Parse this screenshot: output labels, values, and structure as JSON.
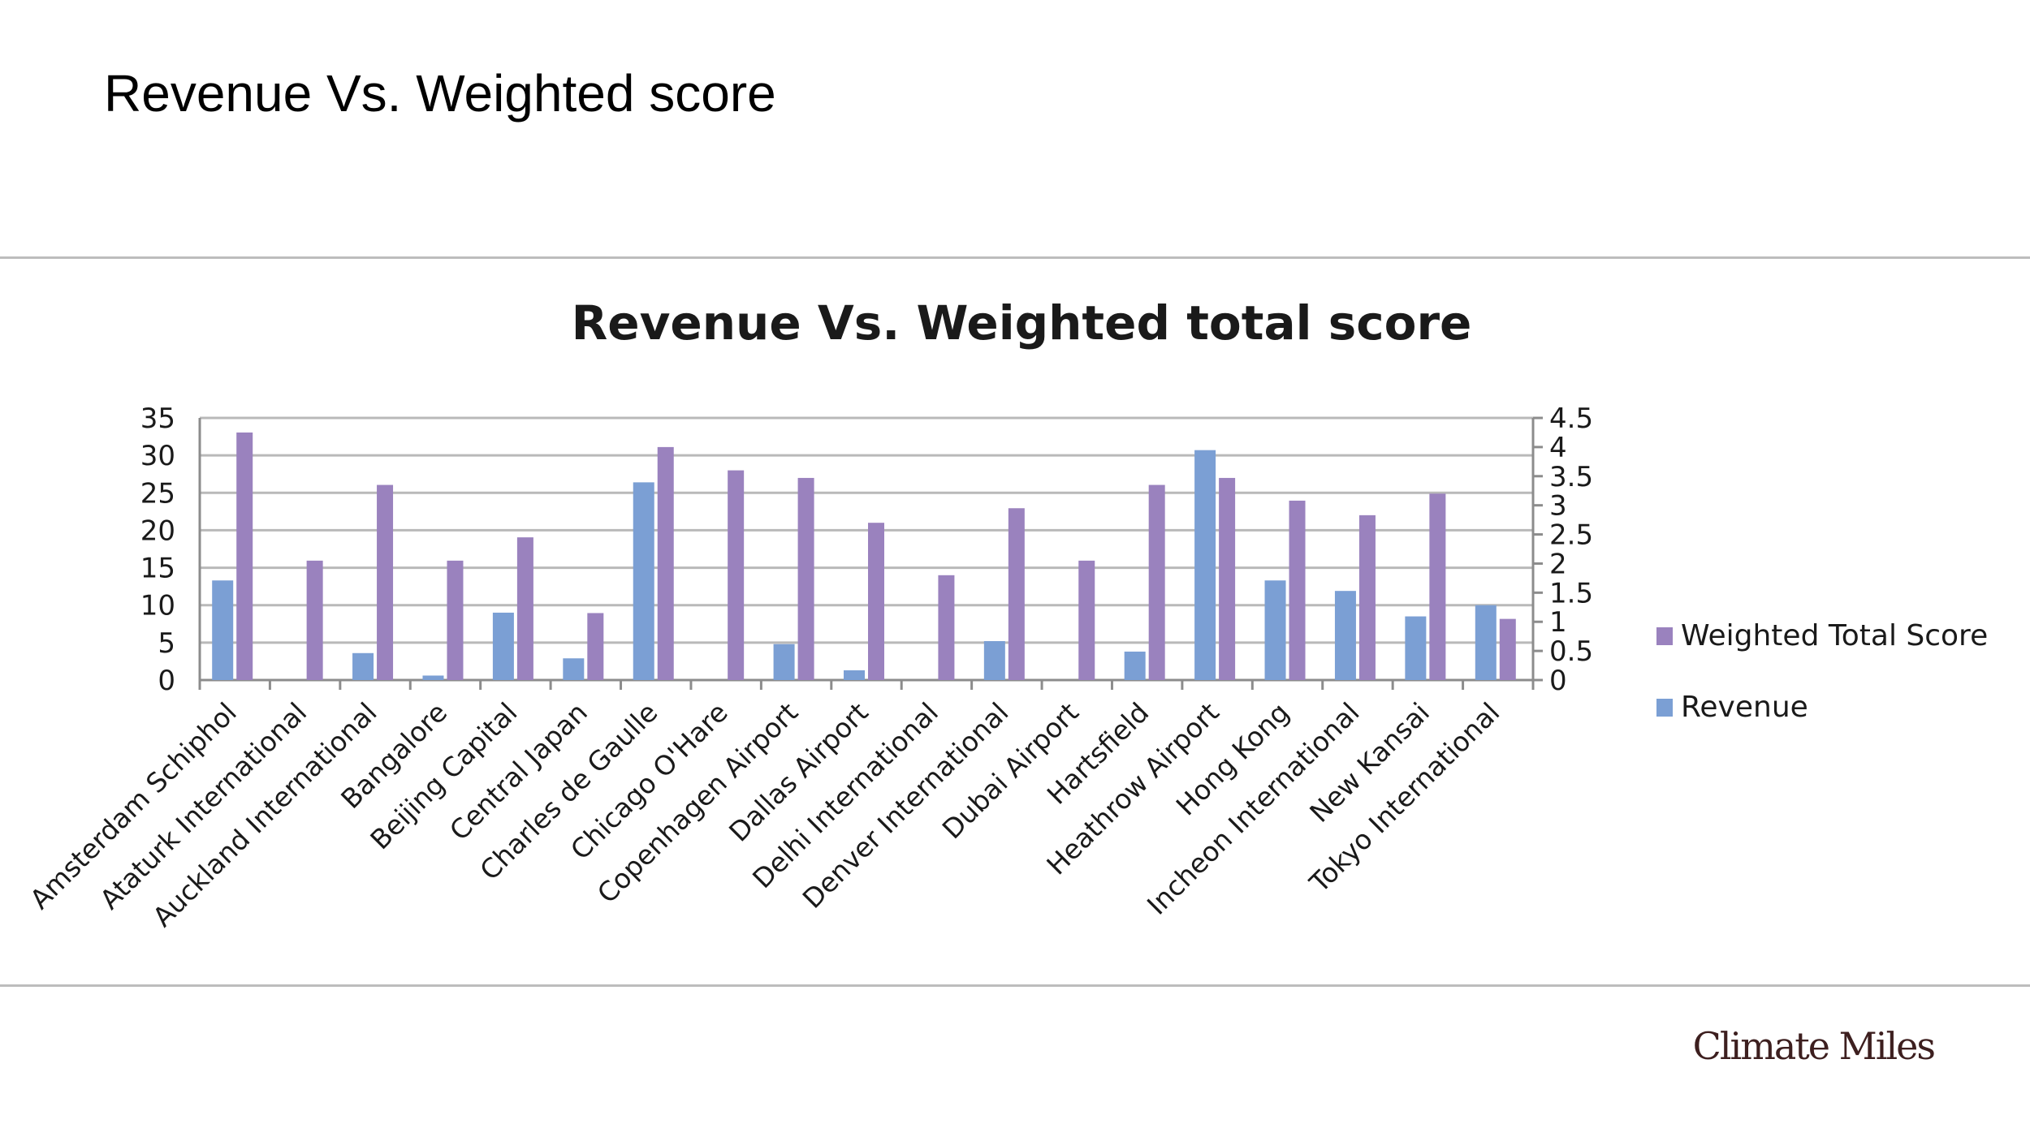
{
  "slide": {
    "title": "Revenue Vs. Weighted score",
    "brand": "Climate Miles"
  },
  "colors": {
    "revenue": "#7b9fd4",
    "weighted": "#9a82be",
    "gridline": "#b9b9b9",
    "axis": "#8c8c8c",
    "text": "#1a1a1a"
  },
  "chart_data": {
    "type": "bar",
    "title": "Revenue Vs. Weighted total score",
    "categories": [
      "Amsterdam Schiphol",
      "Ataturk International",
      "Auckland International",
      "Bangalore",
      "Beijing Capital",
      "Central Japan",
      "Charles de Gaulle",
      "Chicago O'Hare",
      "Copenhagen Airport",
      "Dallas Airport",
      "Delhi International",
      "Denver International",
      "Dubai Airport",
      "Hartsfield",
      "Heathrow Airport",
      "Hong Kong",
      "Incheon International",
      "New Kansai",
      "Tokyo International"
    ],
    "series": [
      {
        "name": "Revenue",
        "axis": "left",
        "values": [
          13.3,
          0,
          3.6,
          0.6,
          9,
          2.9,
          26.4,
          0,
          4.8,
          1.3,
          0,
          5.2,
          0,
          3.8,
          30.7,
          13.3,
          11.9,
          8.5,
          10
        ]
      },
      {
        "name": "Weighted Total Score",
        "axis": "right",
        "values": [
          4.25,
          2.05,
          3.35,
          2.05,
          2.45,
          1.15,
          4.0,
          3.6,
          3.47,
          2.7,
          1.8,
          2.95,
          2.05,
          3.35,
          3.47,
          3.08,
          2.83,
          3.2,
          1.05
        ]
      }
    ],
    "ylim_left": [
      0,
      35
    ],
    "yticks_left": [
      0,
      5,
      10,
      15,
      20,
      25,
      30,
      35
    ],
    "ylim_right": [
      0,
      4.5
    ],
    "yticks_right": [
      "0",
      "0.5",
      "1",
      "1.5",
      "2",
      "2.5",
      "3",
      "3.5",
      "4",
      "4.5"
    ],
    "xlabel": "",
    "ylabel_left": "",
    "ylabel_right": "",
    "grid": true,
    "legend": {
      "placement": "right",
      "entries": [
        "Weighted Total Score",
        "Revenue"
      ]
    }
  }
}
